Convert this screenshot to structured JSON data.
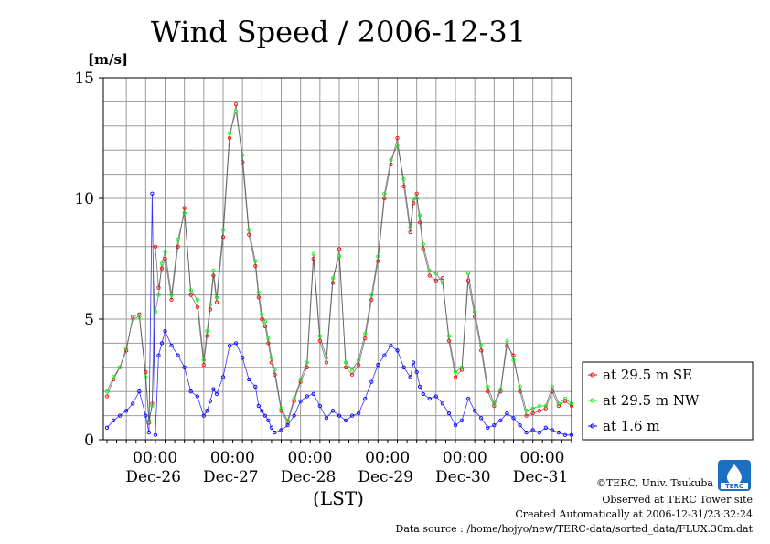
{
  "chart_data": {
    "type": "line",
    "title": "Wind Speed / 2006-12-31",
    "ylabel": "[m/s]",
    "xlabel": "(LST)",
    "ylim": [
      0,
      15
    ],
    "yticks": [
      0,
      5,
      10,
      15
    ],
    "xlim": [
      0,
      144
    ],
    "time_tick_label": "00:00",
    "day_ticks": [
      {
        "x": 24,
        "day": "Dec-26"
      },
      {
        "x": 48,
        "day": "Dec-27"
      },
      {
        "x": 72,
        "day": "Dec-28"
      },
      {
        "x": 96,
        "day": "Dec-29"
      },
      {
        "x": 120,
        "day": "Dec-30"
      },
      {
        "x": 144,
        "day": "Dec-31"
      }
    ],
    "grid": true,
    "legend_position": "right",
    "series": [
      {
        "name": "at 29.5 m SE",
        "color": "#ff0000",
        "x": [
          0,
          2,
          4,
          6,
          8,
          10,
          12,
          13,
          14,
          15,
          16,
          17,
          18,
          20,
          22,
          24,
          26,
          28,
          30,
          31,
          32,
          33,
          34,
          36,
          38,
          40,
          42,
          44,
          46,
          47,
          48,
          49,
          50,
          51,
          52,
          54,
          56,
          58,
          60,
          62,
          64,
          66,
          68,
          70,
          72,
          74,
          76,
          78,
          80,
          82,
          84,
          86,
          88,
          90,
          92,
          94,
          95,
          96,
          97,
          98,
          100,
          102,
          104,
          106,
          108,
          110,
          112,
          114,
          116,
          118,
          120,
          122,
          124,
          126,
          128,
          130,
          132,
          134,
          136,
          138,
          140,
          142,
          144
        ],
        "y": [
          1.8,
          2.5,
          3.0,
          3.7,
          5.1,
          5.2,
          2.8,
          0.7,
          1.5,
          8.0,
          6.3,
          7.1,
          7.5,
          5.8,
          8.0,
          9.6,
          6.0,
          5.5,
          3.1,
          4.3,
          5.4,
          6.8,
          5.7,
          8.4,
          12.5,
          13.9,
          11.5,
          8.5,
          7.2,
          5.9,
          5.0,
          4.7,
          4.0,
          3.2,
          2.7,
          1.2,
          0.7,
          1.6,
          2.4,
          3.0,
          7.5,
          4.1,
          3.2,
          6.5,
          7.9,
          3.0,
          2.7,
          3.1,
          4.2,
          5.8,
          7.4,
          10.0,
          11.4,
          12.5,
          10.5,
          8.6,
          9.8,
          10.2,
          9.0,
          7.9,
          6.8,
          6.6,
          6.7,
          4.1,
          2.6,
          2.9,
          6.6,
          5.1,
          3.7,
          2.0,
          1.4,
          2.0,
          3.9,
          3.5,
          2.0,
          1.0,
          1.1,
          1.2,
          1.3,
          2.0,
          1.4,
          1.6,
          1.4
        ]
      },
      {
        "name": "at 29.5 m NW",
        "color": "#00ff00",
        "x": [
          0,
          2,
          4,
          6,
          8,
          10,
          12,
          13,
          14,
          15,
          16,
          17,
          18,
          20,
          22,
          24,
          26,
          28,
          30,
          31,
          32,
          33,
          34,
          36,
          38,
          40,
          42,
          44,
          46,
          47,
          48,
          49,
          50,
          51,
          52,
          54,
          56,
          58,
          60,
          62,
          64,
          66,
          68,
          70,
          72,
          74,
          76,
          78,
          80,
          82,
          84,
          86,
          88,
          90,
          92,
          94,
          95,
          96,
          97,
          98,
          100,
          102,
          104,
          106,
          108,
          110,
          112,
          114,
          116,
          118,
          120,
          122,
          124,
          126,
          128,
          130,
          132,
          134,
          136,
          138,
          140,
          142,
          144
        ],
        "y": [
          2.0,
          2.6,
          3.0,
          3.8,
          5.0,
          5.1,
          2.6,
          0.8,
          1.4,
          5.3,
          6.0,
          7.3,
          7.8,
          6.0,
          8.3,
          9.4,
          6.2,
          5.8,
          3.3,
          4.5,
          5.6,
          7.0,
          5.9,
          8.7,
          12.7,
          13.6,
          11.8,
          8.7,
          7.4,
          6.1,
          5.2,
          4.9,
          4.2,
          3.4,
          2.9,
          1.3,
          0.8,
          1.7,
          2.5,
          3.2,
          7.7,
          4.3,
          3.4,
          6.7,
          7.6,
          3.2,
          2.9,
          3.3,
          4.4,
          6.0,
          7.6,
          10.2,
          11.6,
          12.2,
          10.8,
          8.8,
          10.0,
          10.0,
          9.3,
          8.1,
          7.0,
          6.9,
          6.5,
          4.3,
          2.8,
          3.0,
          6.9,
          5.3,
          3.9,
          2.2,
          1.5,
          2.1,
          4.1,
          3.3,
          2.2,
          1.2,
          1.3,
          1.4,
          1.4,
          2.2,
          1.5,
          1.7,
          1.5
        ]
      },
      {
        "name": "at 1.6 m",
        "color": "#0000ff",
        "x": [
          0,
          2,
          4,
          6,
          8,
          10,
          12,
          13,
          14,
          15,
          16,
          17,
          18,
          20,
          22,
          24,
          26,
          28,
          30,
          31,
          32,
          33,
          34,
          36,
          38,
          40,
          42,
          44,
          46,
          47,
          48,
          49,
          50,
          51,
          52,
          54,
          56,
          58,
          60,
          62,
          64,
          66,
          68,
          70,
          72,
          74,
          76,
          78,
          80,
          82,
          84,
          86,
          88,
          90,
          92,
          94,
          95,
          96,
          97,
          98,
          100,
          102,
          104,
          106,
          108,
          110,
          112,
          114,
          116,
          118,
          120,
          122,
          124,
          126,
          128,
          130,
          132,
          134,
          136,
          138,
          140,
          142,
          144
        ],
        "y": [
          0.5,
          0.8,
          1.0,
          1.2,
          1.5,
          2.0,
          1.0,
          0.3,
          10.2,
          0.2,
          3.5,
          4.0,
          4.5,
          3.9,
          3.5,
          3.0,
          2.0,
          1.8,
          1.0,
          1.2,
          1.6,
          2.1,
          1.9,
          2.6,
          3.9,
          4.0,
          3.4,
          2.5,
          2.2,
          1.4,
          1.2,
          1.0,
          0.8,
          0.5,
          0.3,
          0.4,
          0.6,
          1.0,
          1.6,
          1.8,
          1.9,
          1.4,
          0.9,
          1.2,
          1.0,
          0.8,
          1.0,
          1.1,
          1.7,
          2.4,
          3.1,
          3.5,
          3.9,
          3.7,
          3.0,
          2.6,
          3.2,
          2.8,
          2.2,
          1.9,
          1.7,
          1.8,
          1.5,
          1.1,
          0.6,
          0.8,
          1.7,
          1.2,
          0.9,
          0.5,
          0.6,
          0.8,
          1.1,
          0.9,
          0.6,
          0.3,
          0.4,
          0.3,
          0.5,
          0.4,
          0.3,
          0.2,
          0.2
        ]
      }
    ]
  },
  "credits": {
    "copyright": "©TERC, Univ. Tsukuba",
    "site": "Observed at TERC Tower site",
    "created": "Created Automatically at 2006-12-31/23:32:24",
    "source": "Data source : /home/hojyo/new/TERC-data/sorted_data/FLUX.30m.dat",
    "logo_text": "TERC"
  }
}
